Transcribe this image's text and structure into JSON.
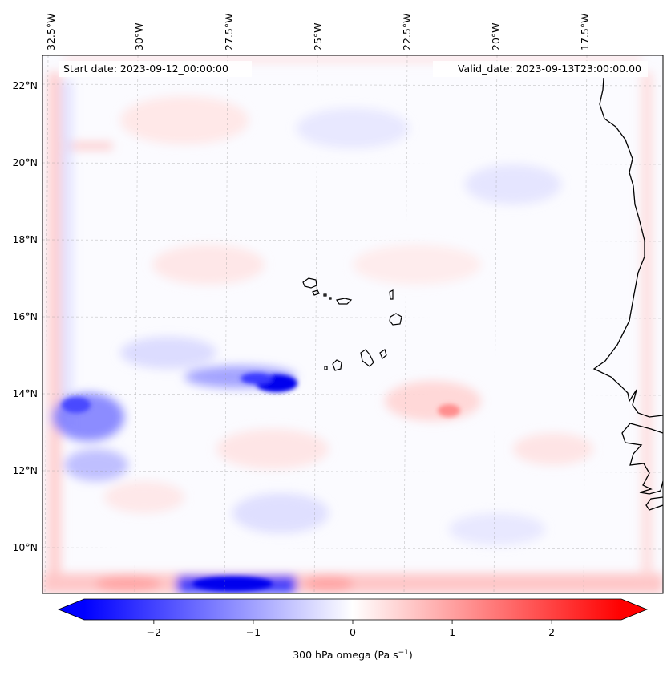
{
  "map": {
    "start_date_text": "Start date: 2023-09-12_00:00:00",
    "valid_date_text": "Valid_date: 2023-09-13T23:00:00.00",
    "lon_labels": [
      "32.5°W",
      "30°W",
      "27.5°W",
      "25°W",
      "22.5°W",
      "20°W",
      "17.5°W"
    ],
    "lat_labels": [
      "22°N",
      "20°N",
      "18°N",
      "16°N",
      "14°N",
      "12°N",
      "10°N"
    ],
    "field": "300 hPa omega",
    "colors": {
      "negative": "#0000ff",
      "zero": "#ffffff",
      "positive": "#ff0000",
      "coastline": "#000000"
    }
  },
  "colorbar": {
    "label": "300 hPa omega (Pa s",
    "label_exp": "−1",
    "label_close": ")",
    "ticks": [
      "−2",
      "−1",
      "0",
      "1",
      "2"
    ],
    "range": [
      -2.7,
      2.7
    ],
    "tick_values": [
      -2,
      -1,
      0,
      1,
      2
    ]
  }
}
